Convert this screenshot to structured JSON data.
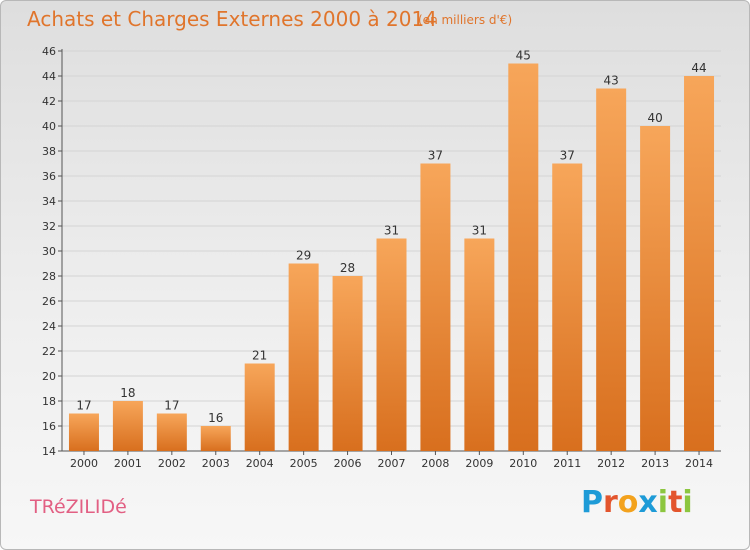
{
  "header": {
    "title": "Achats et Charges Externes 2000 à 2014",
    "subtitle": "(en milliers d'€)"
  },
  "footer": {
    "commune": "TRéZILIDé",
    "logo_text": "Proxiti",
    "logo_colors": [
      "#1e9bd7",
      "#e3552d",
      "#f3a21d",
      "#1e9bd7",
      "#8cc63f",
      "#e3552d",
      "#8cc63f"
    ]
  },
  "colors": {
    "title": "#e0752c",
    "commune": "#e25f83",
    "bar_top": "#f7a65a",
    "bar_bottom": "#d86f1e",
    "grid": "#d4d4d4",
    "axis": "#555555"
  },
  "chart_data": {
    "type": "bar",
    "title": "Achats et Charges Externes 2000 à 2014",
    "subtitle": "(en milliers d'€)",
    "categories": [
      "2000",
      "2001",
      "2002",
      "2003",
      "2004",
      "2005",
      "2006",
      "2007",
      "2008",
      "2009",
      "2010",
      "2011",
      "2012",
      "2013",
      "2014"
    ],
    "values": [
      17,
      18,
      17,
      16,
      21,
      29,
      28,
      31,
      37,
      31,
      45,
      37,
      43,
      40,
      44
    ],
    "ylim": [
      14,
      46
    ],
    "yticks": [
      14,
      16,
      18,
      20,
      22,
      24,
      26,
      28,
      30,
      32,
      34,
      36,
      38,
      40,
      42,
      44,
      46
    ],
    "xlabel": "",
    "ylabel": "",
    "grid": true,
    "data_labels": true
  }
}
